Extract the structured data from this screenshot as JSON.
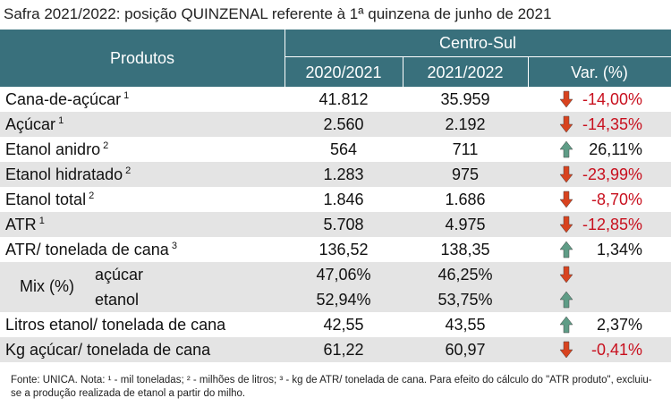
{
  "title": "Safra 2021/2022: posição QUINZENAL referente à 1ª quinzena de junho de 2021",
  "colors": {
    "header": "#39707c",
    "stripe": "#e4e4e4",
    "down": "#d8431f",
    "up": "#5f9c86",
    "negative_text": "#c8101e"
  },
  "table": {
    "header": {
      "products": "Produtos",
      "region": "Centro-Sul",
      "col1": "2020/2021",
      "col2": "2021/2022",
      "var": "Var. (%)"
    },
    "rows": [
      {
        "label": "Cana-de-açúcar",
        "sup": "1",
        "col1": "41.812",
        "col2": "35.959",
        "var": "-14,00%",
        "arrow": "down"
      },
      {
        "label": "Açúcar",
        "sup": "1",
        "col1": "2.560",
        "col2": "2.192",
        "var": "-14,35%",
        "arrow": "down"
      },
      {
        "label": "Etanol anidro",
        "sup": "2",
        "col1": "564",
        "col2": "711",
        "var": "26,11%",
        "arrow": "up"
      },
      {
        "label": "Etanol hidratado",
        "sup": "2",
        "col1": "1.283",
        "col2": "975",
        "var": "-23,99%",
        "arrow": "down"
      },
      {
        "label": "Etanol total",
        "sup": "2",
        "col1": "1.846",
        "col2": "1.686",
        "var": "-8,70%",
        "arrow": "down"
      },
      {
        "label": "ATR",
        "sup": "1",
        "col1": "5.708",
        "col2": "4.975",
        "var": "-12,85%",
        "arrow": "down"
      },
      {
        "label": "ATR/ tonelada de cana",
        "sup": "3",
        "col1": "136,52",
        "col2": "138,35",
        "var": "1,34%",
        "arrow": "up"
      },
      {
        "label": "Mix (%)",
        "sub": [
          {
            "label": "açúcar",
            "col1": "47,06%",
            "col2": "46,25%",
            "arrow": "down"
          },
          {
            "label": "etanol",
            "col1": "52,94%",
            "col2": "53,75%",
            "arrow": "up"
          }
        ]
      },
      {
        "label": "Litros etanol/ tonelada de cana",
        "col1": "42,55",
        "col2": "43,55",
        "var": "2,37%",
        "arrow": "up"
      },
      {
        "label": "Kg açúcar/ tonelada de cana",
        "col1": "61,22",
        "col2": "60,97",
        "var": "-0,41%",
        "arrow": "down"
      }
    ]
  },
  "footnote": "Fonte: UNICA. Nota: ¹ - mil toneladas; ² - milhões de litros; ³ - kg de ATR/ tonelada de cana. Para efeito do cálculo do \"ATR produto\", excluiu-se a produção realizada de etanol a partir do milho."
}
